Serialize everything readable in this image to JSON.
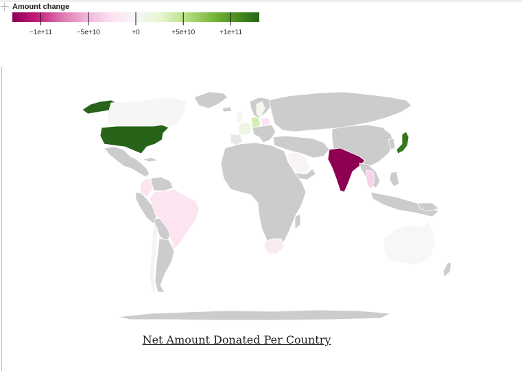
{
  "chart_data": {
    "type": "choropleth",
    "title": "Net Amount Donated Per Country",
    "legend": {
      "title": "Amount change",
      "placement": "top-left",
      "domain": [
        -130000000000,
        130000000000
      ],
      "ticks": [
        {
          "value": -100000000000,
          "label": "−1e+11"
        },
        {
          "value": -50000000000,
          "label": "−5e+10"
        },
        {
          "value": 0,
          "label": "+0"
        },
        {
          "value": 50000000000,
          "label": "+5e+10"
        },
        {
          "value": 100000000000,
          "label": "+1e+11"
        }
      ],
      "colors": [
        "#8e0152",
        "#c51b7d",
        "#de77ae",
        "#f1b6da",
        "#fde0ef",
        "#f7f7f7",
        "#e6f5d0",
        "#b8e186",
        "#7fbc41",
        "#4d9221",
        "#276419"
      ]
    },
    "no_data_color": "#cccccc",
    "regions": [
      {
        "name": "United States",
        "value": 130000000000
      },
      {
        "name": "Alaska",
        "value": 130000000000
      },
      {
        "name": "Canada",
        "value": 2000000000
      },
      {
        "name": "Japan",
        "value": 120000000000
      },
      {
        "name": "India",
        "value": -130000000000
      },
      {
        "name": "Thailand",
        "value": -35000000000
      },
      {
        "name": "Brazil",
        "value": -22000000000
      },
      {
        "name": "Colombia",
        "value": -22000000000
      },
      {
        "name": "South Africa",
        "value": -15000000000
      },
      {
        "name": "Chile",
        "value": -6000000000
      },
      {
        "name": "Saudi Arabia",
        "value": -4000000000
      },
      {
        "name": "Germany",
        "value": 35000000000
      },
      {
        "name": "France",
        "value": 12000000000
      },
      {
        "name": "Poland",
        "value": -20000000000
      },
      {
        "name": "United Kingdom",
        "value": 3000000000
      },
      {
        "name": "Sweden",
        "value": 6000000000
      },
      {
        "name": "Australia",
        "value": 1000000000
      }
    ]
  }
}
